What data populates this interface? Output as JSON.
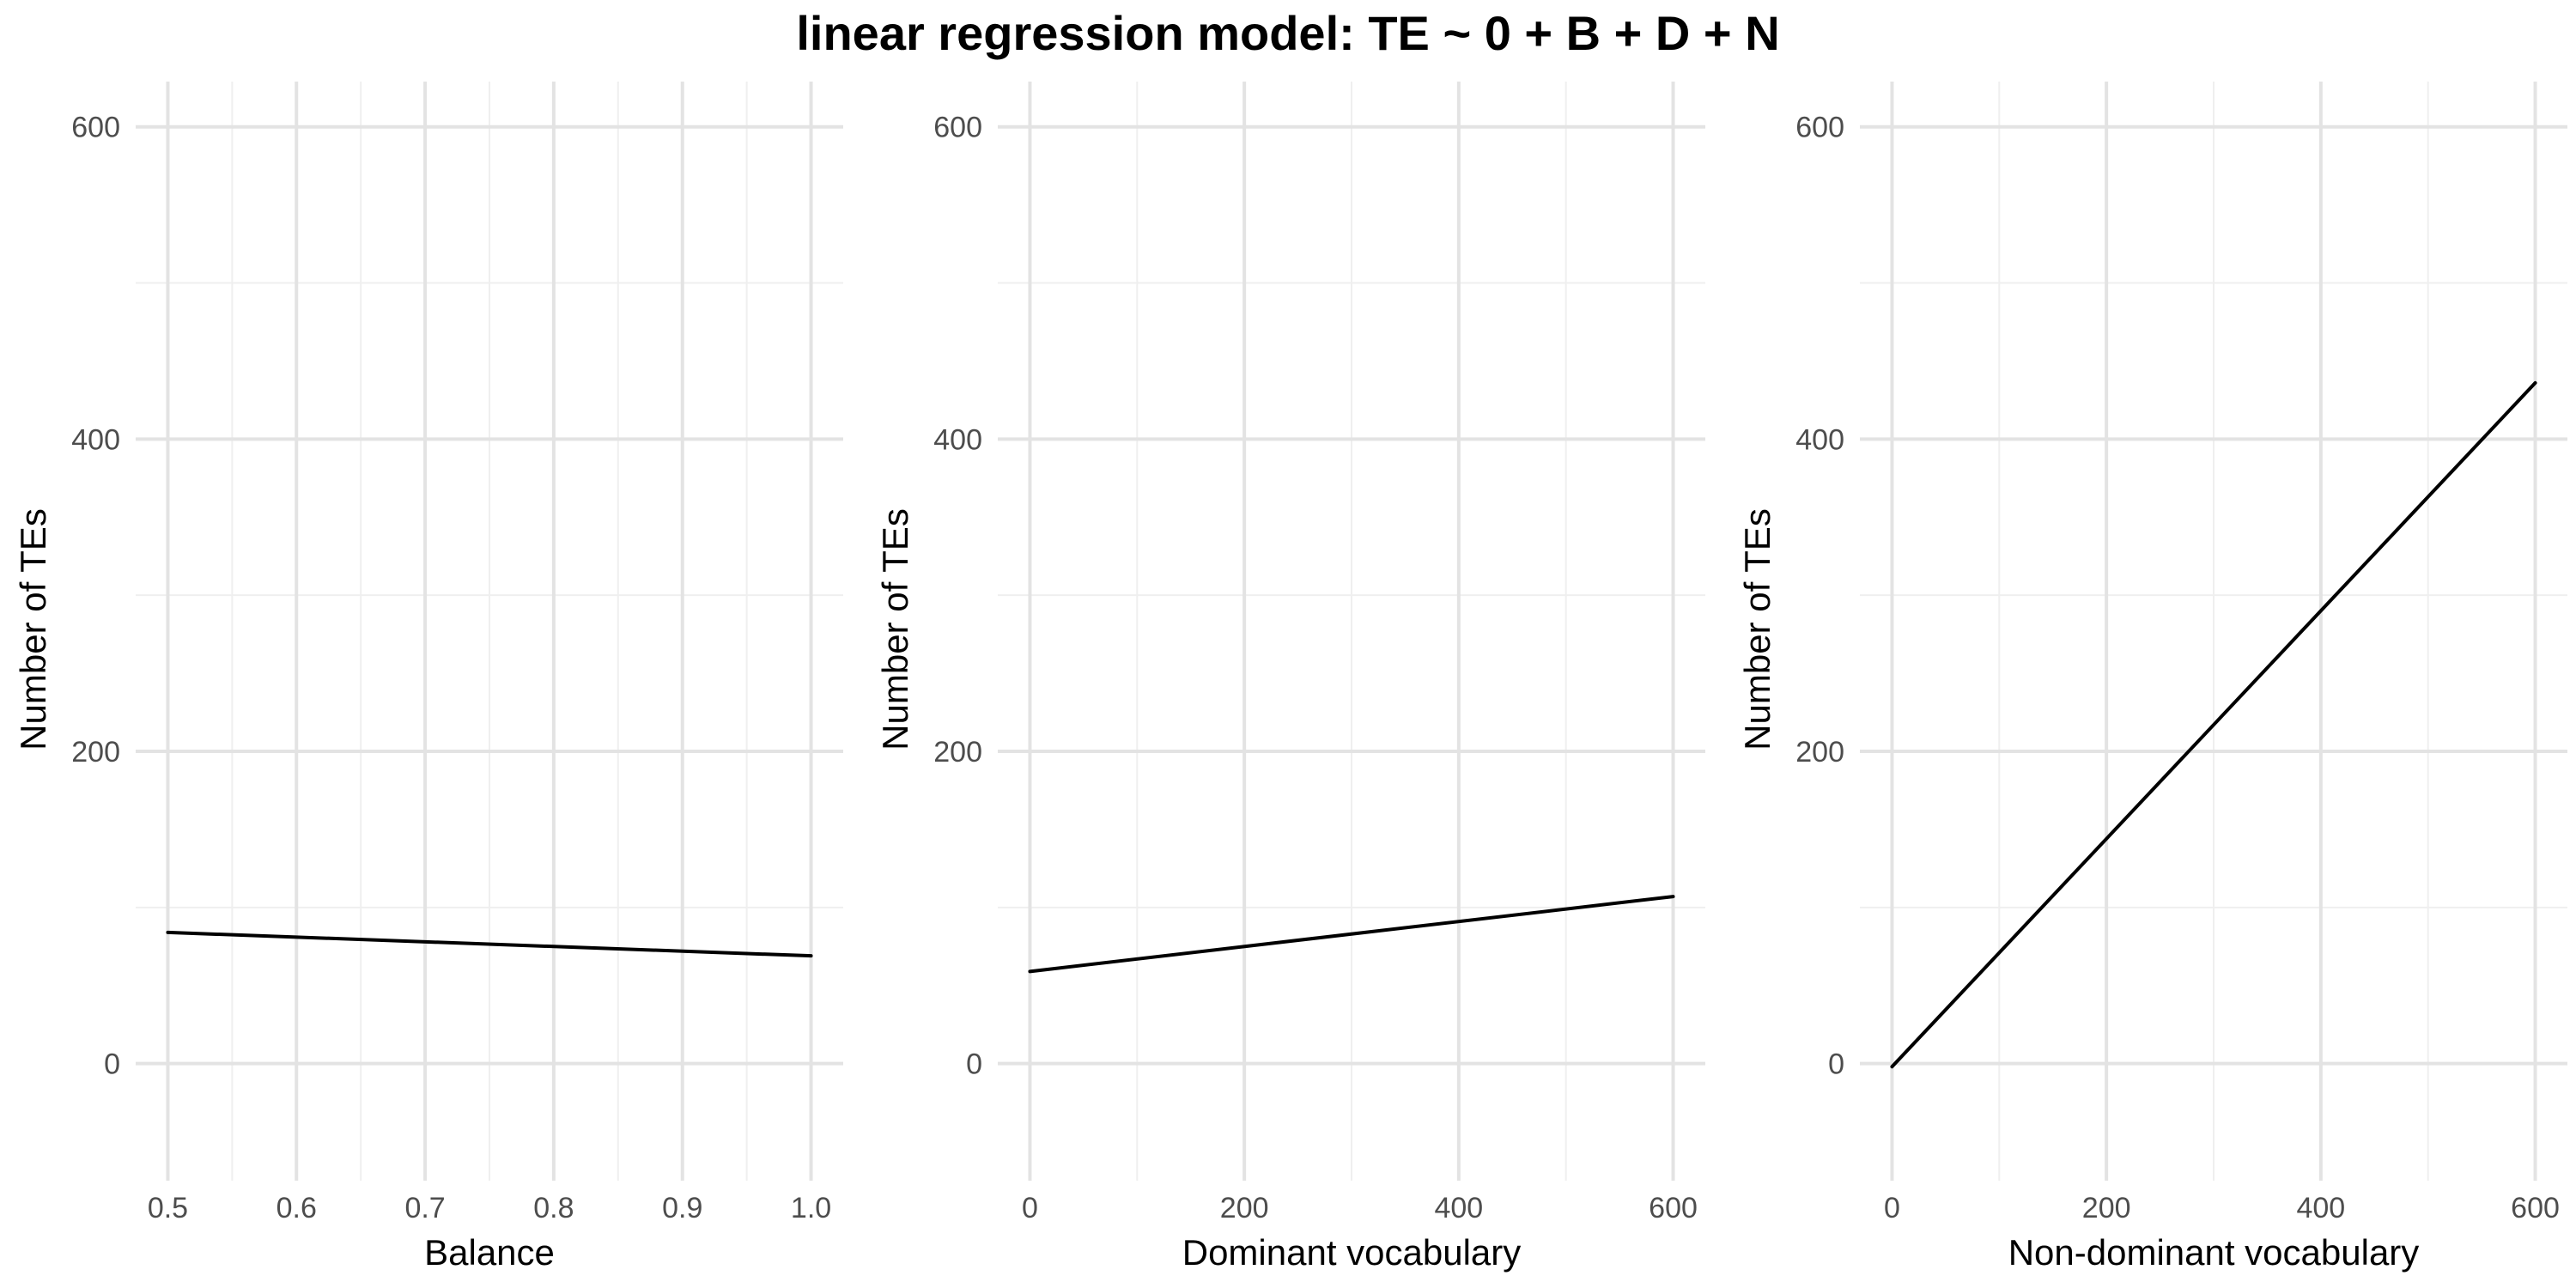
{
  "figure": {
    "title": "linear regression model: TE ~ 0 + B + D + N"
  },
  "style": {
    "line_color": "#000000",
    "major_grid_color": "#e3e3e3",
    "minor_grid_color": "#efefef",
    "tick_label_color": "#4d4d4d"
  },
  "chart_data": [
    {
      "type": "line",
      "xlabel": "Balance",
      "ylabel": "Number of TEs",
      "xlim": [
        0.5,
        1.0
      ],
      "ylim": [
        0,
        600
      ],
      "x_ticks": [
        0.5,
        0.6,
        0.7,
        0.8,
        0.9,
        1.0
      ],
      "x_tick_labels": [
        "0.5",
        "0.6",
        "0.7",
        "0.8",
        "0.9",
        "1.0"
      ],
      "y_ticks": [
        0,
        200,
        400,
        600
      ],
      "y_tick_labels": [
        "0",
        "200",
        "400",
        "600"
      ],
      "grid": true,
      "series": [
        {
          "x": [
            0.5,
            1.0
          ],
          "y": [
            84,
            69
          ]
        }
      ]
    },
    {
      "type": "line",
      "xlabel": "Dominant vocabulary",
      "ylabel": "Number of TEs",
      "xlim": [
        0,
        600
      ],
      "ylim": [
        0,
        600
      ],
      "x_ticks": [
        0,
        200,
        400,
        600
      ],
      "x_tick_labels": [
        "0",
        "200",
        "400",
        "600"
      ],
      "y_ticks": [
        0,
        200,
        400,
        600
      ],
      "y_tick_labels": [
        "0",
        "200",
        "400",
        "600"
      ],
      "grid": true,
      "series": [
        {
          "x": [
            0,
            600
          ],
          "y": [
            59,
            107
          ]
        }
      ]
    },
    {
      "type": "line",
      "xlabel": "Non-dominant vocabulary",
      "ylabel": "Number of TEs",
      "xlim": [
        0,
        600
      ],
      "ylim": [
        0,
        600
      ],
      "x_ticks": [
        0,
        200,
        400,
        600
      ],
      "x_tick_labels": [
        "0",
        "200",
        "400",
        "600"
      ],
      "y_ticks": [
        0,
        200,
        400,
        600
      ],
      "y_tick_labels": [
        "0",
        "200",
        "400",
        "600"
      ],
      "grid": true,
      "series": [
        {
          "x": [
            0,
            600
          ],
          "y": [
            -2,
            436
          ]
        }
      ]
    }
  ]
}
